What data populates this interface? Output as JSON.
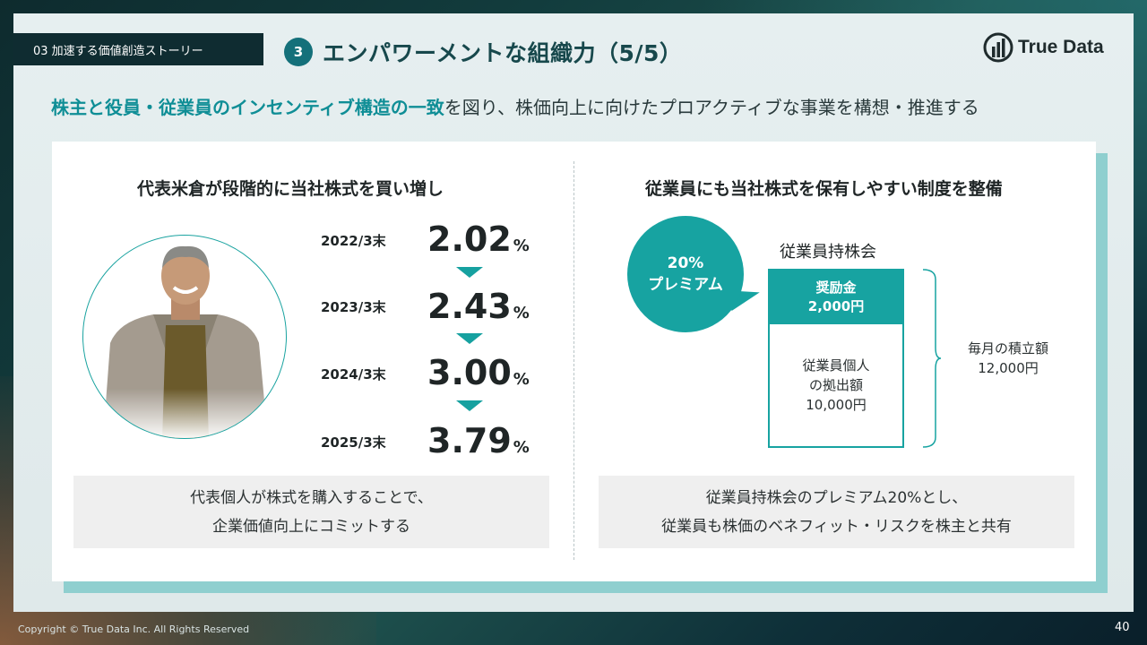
{
  "header": {
    "section_tag": "03 加速する価値創造ストーリー",
    "title_number": "3",
    "title": "エンパワーメントな組織力（5/5）",
    "logo_text": "True Data"
  },
  "subtitle": {
    "highlight": "株主と役員・従業員のインセンティブ構造の一致",
    "rest": "を図り、株価向上に向けたプロアクティブな事業を構想・推進する"
  },
  "left": {
    "heading": "代表米倉が段階的に当社株式を買い増し",
    "rows": [
      {
        "label": "2022/3末",
        "value": "2.02",
        "unit": "%"
      },
      {
        "label": "2023/3末",
        "value": "2.43",
        "unit": "%"
      },
      {
        "label": "2024/3末",
        "value": "3.00",
        "unit": "%"
      },
      {
        "label": "2025/3末",
        "value": "3.79",
        "unit": "%"
      }
    ],
    "note_line1": "代表個人が株式を購入することで、",
    "note_line2": "企業価値向上にコミットする"
  },
  "right": {
    "heading": "従業員にも当社株式を保有しやすい制度を整備",
    "bubble_line1": "20%",
    "bubble_line2": "プレミアム",
    "assoc_label": "従業員持株会",
    "top_line1": "奨励金",
    "top_line2": "2,000円",
    "bottom_line1": "従業員個人",
    "bottom_line2": "の拠出額",
    "bottom_line3": "10,000円",
    "monthly_line1": "毎月の積立額",
    "monthly_line2": "12,000円",
    "note_line1": "従業員持株会のプレミアム20%とし、",
    "note_line2": "従業員も株価のベネフィット・リスクを株主と共有"
  },
  "footer": {
    "copyright": "Copyright © True Data Inc. All Rights Reserved",
    "page": "40"
  },
  "colors": {
    "accent": "#17a3a1",
    "title_text": "#17484c",
    "dark_tag": "#0f2c31"
  },
  "icons": {
    "logo": "bar-chart-logo-icon",
    "arrows": "triangle-down-icon",
    "portrait": "person-photo"
  }
}
